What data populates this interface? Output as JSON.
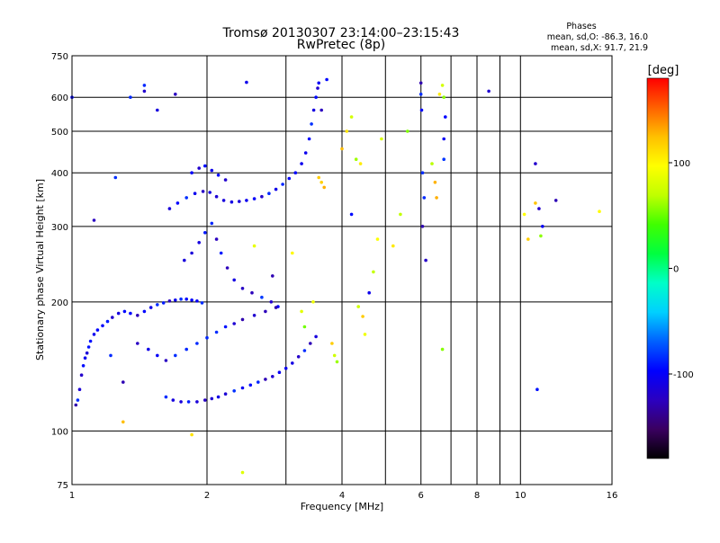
{
  "chart_data": {
    "type": "scatter",
    "title": "Tromsø 20130307 23:14:00–23:15:43",
    "subtitle": "RwPretec (8p)",
    "stats": {
      "heading": "Phases",
      "line1": "mean, sd,O: -86.3, 16.0",
      "line2": "mean, sd,X:  91.7, 21.9"
    },
    "xlabel": "Frequency [MHz]",
    "ylabel": "Stationary phase Virtual Height [km]",
    "x_scale": "log",
    "y_scale": "log",
    "xlim": [
      1,
      16
    ],
    "ylim": [
      75,
      750
    ],
    "x_ticks": [
      1,
      2,
      4,
      6,
      8,
      10,
      16
    ],
    "x_minor_ticks": [
      3,
      5,
      7,
      9
    ],
    "y_ticks": [
      75,
      100,
      200,
      300,
      400,
      500,
      600,
      750
    ],
    "grid": true,
    "colorbar": {
      "label": "[deg]",
      "range": [
        -180,
        180
      ],
      "ticks": [
        100,
        0,
        -100
      ],
      "colors": [
        "#000000",
        "#3a0060",
        "#2b00c0",
        "#0000ff",
        "#0060ff",
        "#00d0ff",
        "#00ffc8",
        "#00ff40",
        "#40ff00",
        "#c0ff00",
        "#ffff00",
        "#ffc000",
        "#ff6000",
        "#ff0000"
      ]
    },
    "series": [
      {
        "mode": "O",
        "points": [
          [
            1.02,
            115
          ],
          [
            1.03,
            118
          ],
          [
            1.04,
            125
          ],
          [
            1.05,
            135
          ],
          [
            1.06,
            142
          ],
          [
            1.07,
            148
          ],
          [
            1.08,
            152
          ],
          [
            1.09,
            157
          ],
          [
            1.1,
            162
          ],
          [
            1.12,
            168
          ],
          [
            1.14,
            172
          ],
          [
            1.17,
            176
          ],
          [
            1.2,
            180
          ],
          [
            1.23,
            184
          ],
          [
            1.27,
            188
          ],
          [
            1.31,
            190
          ],
          [
            1.35,
            188
          ],
          [
            1.4,
            186
          ],
          [
            1.45,
            190
          ],
          [
            1.5,
            194
          ],
          [
            1.55,
            197
          ],
          [
            1.6,
            199
          ],
          [
            1.65,
            201
          ],
          [
            1.7,
            202
          ],
          [
            1.75,
            203
          ],
          [
            1.8,
            203
          ],
          [
            1.85,
            202
          ],
          [
            1.9,
            201
          ],
          [
            1.95,
            199
          ],
          [
            1.62,
            120
          ],
          [
            1.68,
            118
          ],
          [
            1.75,
            117
          ],
          [
            1.82,
            117
          ],
          [
            1.9,
            117
          ],
          [
            1.98,
            118
          ],
          [
            2.05,
            119
          ],
          [
            2.12,
            120
          ],
          [
            2.2,
            122
          ],
          [
            2.3,
            124
          ],
          [
            2.4,
            126
          ],
          [
            2.5,
            128
          ],
          [
            2.6,
            130
          ],
          [
            2.7,
            132
          ],
          [
            2.8,
            134
          ],
          [
            2.9,
            137
          ],
          [
            3.0,
            140
          ],
          [
            3.1,
            144
          ],
          [
            3.2,
            149
          ],
          [
            3.3,
            154
          ],
          [
            3.4,
            160
          ],
          [
            3.5,
            166
          ],
          [
            1.65,
            330
          ],
          [
            1.72,
            340
          ],
          [
            1.8,
            350
          ],
          [
            1.88,
            358
          ],
          [
            1.96,
            362
          ],
          [
            2.03,
            360
          ],
          [
            2.1,
            352
          ],
          [
            2.18,
            345
          ],
          [
            2.27,
            342
          ],
          [
            2.36,
            343
          ],
          [
            2.45,
            345
          ],
          [
            2.55,
            348
          ],
          [
            2.65,
            352
          ],
          [
            2.75,
            358
          ],
          [
            2.85,
            366
          ],
          [
            2.95,
            376
          ],
          [
            3.05,
            388
          ],
          [
            3.15,
            400
          ],
          [
            3.25,
            420
          ],
          [
            3.32,
            445
          ],
          [
            3.38,
            480
          ],
          [
            3.42,
            520
          ],
          [
            3.46,
            560
          ],
          [
            3.5,
            600
          ],
          [
            3.53,
            630
          ],
          [
            3.55,
            648
          ],
          [
            1.78,
            250
          ],
          [
            1.85,
            260
          ],
          [
            1.92,
            275
          ],
          [
            1.98,
            290
          ],
          [
            2.05,
            305
          ],
          [
            2.1,
            280
          ],
          [
            2.15,
            260
          ],
          [
            2.22,
            240
          ],
          [
            2.3,
            225
          ],
          [
            2.4,
            215
          ],
          [
            2.52,
            210
          ],
          [
            2.65,
            205
          ],
          [
            2.78,
            200
          ],
          [
            2.88,
            195
          ],
          [
            1.4,
            160
          ],
          [
            1.48,
            155
          ],
          [
            1.55,
            150
          ],
          [
            1.62,
            146
          ],
          [
            1.7,
            150
          ],
          [
            1.8,
            155
          ],
          [
            1.9,
            160
          ],
          [
            2.0,
            165
          ],
          [
            2.1,
            170
          ],
          [
            2.2,
            175
          ],
          [
            2.3,
            178
          ],
          [
            2.4,
            182
          ],
          [
            2.55,
            186
          ],
          [
            2.7,
            190
          ],
          [
            2.85,
            194
          ],
          [
            1.85,
            400
          ],
          [
            1.92,
            410
          ],
          [
            1.98,
            415
          ],
          [
            2.05,
            405
          ],
          [
            2.12,
            395
          ],
          [
            2.2,
            385
          ],
          [
            1.45,
            640
          ],
          [
            1.45,
            620
          ],
          [
            1.55,
            560
          ],
          [
            1.35,
            600
          ],
          [
            1.7,
            610
          ],
          [
            2.45,
            650
          ],
          [
            6.0,
            648
          ],
          [
            6.0,
            610
          ],
          [
            6.02,
            560
          ],
          [
            6.05,
            400
          ],
          [
            6.05,
            300
          ],
          [
            6.1,
            350
          ],
          [
            6.15,
            250
          ],
          [
            6.75,
            430
          ],
          [
            6.75,
            480
          ],
          [
            6.8,
            540
          ],
          [
            8.5,
            620
          ],
          [
            10.8,
            420
          ],
          [
            11.0,
            330
          ],
          [
            11.2,
            300
          ],
          [
            12.0,
            345
          ],
          [
            10.9,
            125
          ],
          [
            3.7,
            660
          ],
          [
            4.2,
            320
          ],
          [
            4.6,
            210
          ],
          [
            2.8,
            230
          ],
          [
            3.6,
            560
          ],
          [
            1.25,
            390
          ],
          [
            1.12,
            310
          ],
          [
            1.0,
            600
          ],
          [
            1.22,
            150
          ],
          [
            1.3,
            130
          ]
        ]
      },
      {
        "mode": "X",
        "points": [
          [
            3.55,
            390
          ],
          [
            3.6,
            380
          ],
          [
            3.65,
            370
          ],
          [
            4.0,
            455
          ],
          [
            4.1,
            500
          ],
          [
            4.2,
            540
          ],
          [
            4.3,
            430
          ],
          [
            4.4,
            420
          ],
          [
            3.8,
            160
          ],
          [
            3.85,
            150
          ],
          [
            3.9,
            145
          ],
          [
            4.35,
            195
          ],
          [
            4.45,
            185
          ],
          [
            4.5,
            168
          ],
          [
            4.7,
            235
          ],
          [
            4.8,
            280
          ],
          [
            5.2,
            270
          ],
          [
            5.4,
            320
          ],
          [
            6.6,
            610
          ],
          [
            6.7,
            640
          ],
          [
            6.75,
            600
          ],
          [
            6.35,
            420
          ],
          [
            6.45,
            380
          ],
          [
            6.5,
            350
          ],
          [
            10.2,
            320
          ],
          [
            10.4,
            280
          ],
          [
            10.8,
            340
          ],
          [
            11.1,
            285
          ],
          [
            15.0,
            325
          ],
          [
            3.3,
            175
          ],
          [
            3.25,
            190
          ],
          [
            3.45,
            200
          ],
          [
            1.85,
            98
          ],
          [
            1.3,
            105
          ],
          [
            2.4,
            80
          ],
          [
            6.7,
            155
          ],
          [
            4.9,
            480
          ],
          [
            5.6,
            500
          ],
          [
            3.1,
            260
          ],
          [
            2.55,
            270
          ]
        ]
      }
    ]
  }
}
